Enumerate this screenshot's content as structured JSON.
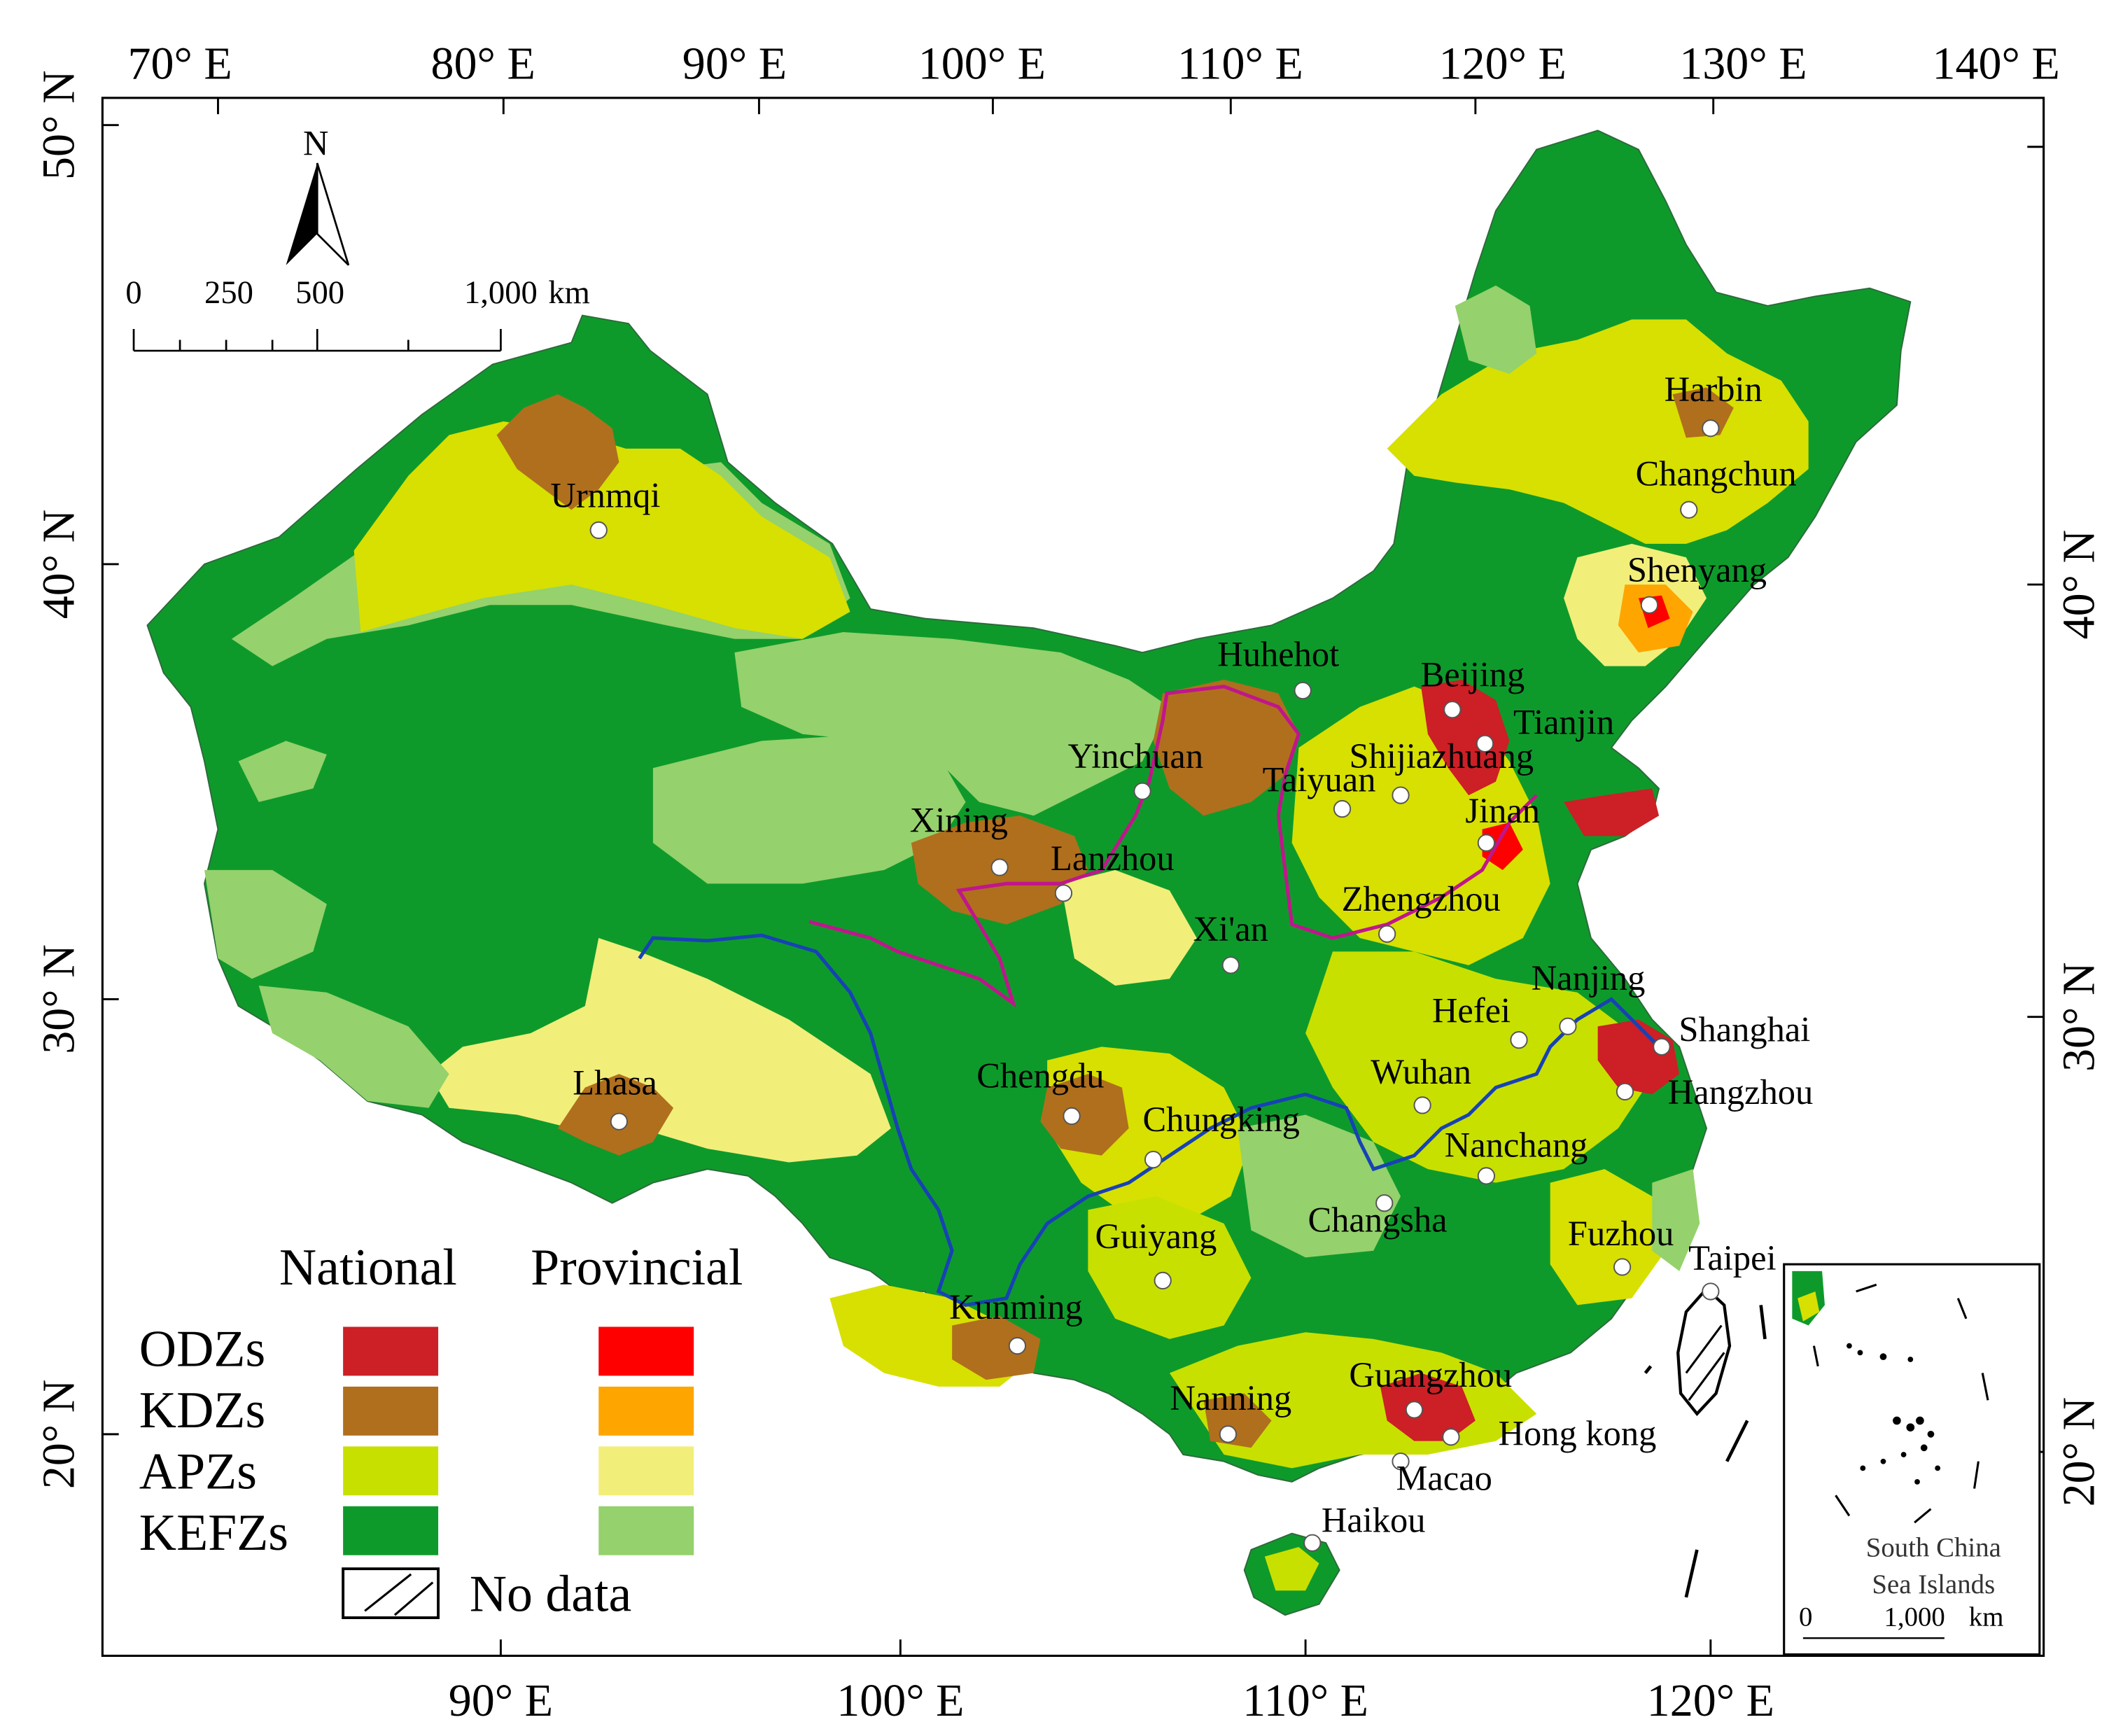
{
  "figure": {
    "top_axis_ticks": [
      "70° E",
      "80° E",
      "90° E",
      "100° E",
      "110° E",
      "120° E",
      "130° E",
      "140° E"
    ],
    "bottom_axis_ticks": [
      "90° E",
      "100° E",
      "110° E",
      "120° E"
    ],
    "left_axis_ticks": [
      "50° N",
      "40° N",
      "30° N",
      "20° N"
    ],
    "right_axis_ticks": [
      "40° N",
      "30° N",
      "20° N"
    ]
  },
  "north_arrow": {
    "label": "N"
  },
  "scale_bar": {
    "ticks": [
      "0",
      "250",
      "500",
      "1,000"
    ],
    "unit": "km"
  },
  "cities": [
    {
      "name": "Urnmqi"
    },
    {
      "name": "Harbin"
    },
    {
      "name": "Changchun"
    },
    {
      "name": "Shenyang"
    },
    {
      "name": "Huhehot"
    },
    {
      "name": "Beijing"
    },
    {
      "name": "Tianjin"
    },
    {
      "name": "Yinchuan"
    },
    {
      "name": "Shijiazhuang"
    },
    {
      "name": "Taiyuan"
    },
    {
      "name": "Jinan"
    },
    {
      "name": "Xining"
    },
    {
      "name": "Lanzhou"
    },
    {
      "name": "Zhengzhou"
    },
    {
      "name": "Xi'an"
    },
    {
      "name": "Nanjing"
    },
    {
      "name": "Hefei"
    },
    {
      "name": "Shanghai"
    },
    {
      "name": "Lhasa"
    },
    {
      "name": "Chengdu"
    },
    {
      "name": "Wuhan"
    },
    {
      "name": "Hangzhou"
    },
    {
      "name": "Chungking"
    },
    {
      "name": "Nanchang"
    },
    {
      "name": "Changsha"
    },
    {
      "name": "Fuzhou"
    },
    {
      "name": "Guiyang"
    },
    {
      "name": "Taipei"
    },
    {
      "name": "Kunming"
    },
    {
      "name": "Guangzhou"
    },
    {
      "name": "Nanning"
    },
    {
      "name": "Hong kong"
    },
    {
      "name": "Macao"
    },
    {
      "name": "Haikou"
    }
  ],
  "legend": {
    "header_national": "National",
    "header_provincial": "Provincial",
    "rows": [
      {
        "label": "ODZs",
        "national_color": "#cc1f26",
        "provincial_color": "#ff0000"
      },
      {
        "label": "KDZs",
        "national_color": "#b06f1d",
        "provincial_color": "#ffa500"
      },
      {
        "label": "APZs",
        "national_color": "#c8e000",
        "provincial_color": "#f2ee7a"
      },
      {
        "label": "KEFZs",
        "national_color": "#0e9a2b",
        "provincial_color": "#95d16c"
      }
    ],
    "no_data_label": "No data"
  },
  "inset": {
    "title_line1": "South China",
    "title_line2": "Sea Islands",
    "scale_start": "0",
    "scale_end": "1,000",
    "scale_unit": "km"
  }
}
